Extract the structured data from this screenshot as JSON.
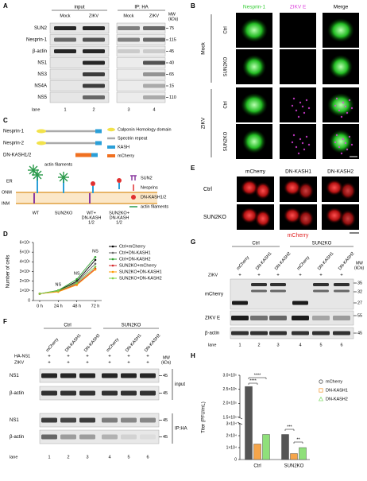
{
  "panel_a": {
    "letter": "A",
    "groups": [
      "input",
      "IP: HA"
    ],
    "conditions": [
      "Mock",
      "ZIKV",
      "Mock",
      "ZIKV"
    ],
    "mw_header": [
      "MW",
      "(kDa)"
    ],
    "rows": [
      {
        "label": "SUN2",
        "mw": 75
      },
      {
        "label": "Nesprin-1",
        "mw": 115
      },
      {
        "label": "β-actin",
        "mw": 45
      },
      {
        "label": "NS1",
        "mw": 40
      },
      {
        "label": "NS3",
        "mw": 65
      },
      {
        "label": "NS4A",
        "mw": 15
      },
      {
        "label": "NS5",
        "mw": 110
      }
    ],
    "lane_label": "lane",
    "lanes": [
      1,
      2,
      3,
      4
    ]
  },
  "panel_b": {
    "letter": "B",
    "columns": [
      "Nesprin-1",
      "ZIKV E",
      "Merge"
    ],
    "groups": [
      {
        "name": "Mock",
        "rows": [
          "Ctrl",
          "SUN2KO"
        ]
      },
      {
        "name": "ZIKV",
        "rows": [
          "Ctrl",
          "SUN2KO"
        ]
      }
    ]
  },
  "panel_c": {
    "letter": "C",
    "constructs": [
      "Nesprin-1",
      "Nesprin-2",
      "DN-KASH1/2"
    ],
    "domains": [
      "Calponin Homology domain",
      "Spectrin repeat",
      "KASH",
      "mCherry"
    ],
    "diagram_labels": {
      "actin": "actin filaments",
      "er": "ER",
      "onm": "ONM",
      "inm": "INM"
    },
    "legend": [
      "SUN2",
      "Nesprins",
      "DN-KASH1/2",
      "actin filaments"
    ],
    "conditions": [
      [
        "WT"
      ],
      [
        "SUN2KO"
      ],
      [
        "WT+",
        "DN-KASH",
        "1/2"
      ],
      [
        "SUN2KO+",
        "DN-KASH",
        "1/2"
      ]
    ]
  },
  "panel_d": {
    "letter": "D",
    "type": "line",
    "ylabel": "Number of cells",
    "categories": [
      "0 h",
      "24 h",
      "48 h",
      "72 h"
    ],
    "ylim": [
      0,
      600000
    ],
    "yticks": [
      0,
      {
        "value": 100000,
        "label": "1×10⁵"
      },
      {
        "value": 200000,
        "label": "2×10⁵"
      },
      {
        "value": 300000,
        "label": "3×10⁵"
      },
      {
        "value": 400000,
        "label": "4×10⁵"
      },
      {
        "value": 500000,
        "label": "5×10⁵"
      },
      {
        "value": 600000,
        "label": "6×10⁵"
      }
    ],
    "series": [
      {
        "name": "Ctrl+mCherry",
        "color": "#000000",
        "values": [
          70000,
          100000,
          200000,
          420000
        ]
      },
      {
        "name": "Ctrl+DN-KASH1",
        "color": "#666666",
        "values": [
          70000,
          95000,
          190000,
          380000
        ]
      },
      {
        "name": "Ctrl+DN-KASH2",
        "color": "#2ca02c",
        "values": [
          70000,
          105000,
          220000,
          450000
        ]
      },
      {
        "name": "SUN2KO+mCherry",
        "color": "#d62728",
        "values": [
          70000,
          95000,
          170000,
          330000
        ]
      },
      {
        "name": "SUN2KO+DN-KASH1",
        "color": "#ff9900",
        "values": [
          70000,
          90000,
          160000,
          320000
        ]
      },
      {
        "name": "SUN2KO+DN-KASH2",
        "color": "#7fd04a",
        "values": [
          70000,
          100000,
          180000,
          350000
        ]
      }
    ],
    "annotations": [
      "NS",
      "NS",
      "NS"
    ]
  },
  "panel_e": {
    "letter": "E",
    "columns": [
      "mCherry",
      "DN-KASH1",
      "DN-KASH2"
    ],
    "rows": [
      "Ctrl",
      "SUN2KO"
    ],
    "channel": "mCherry"
  },
  "panel_f": {
    "letter": "F",
    "groups": [
      "Ctrl",
      "SUN2KO"
    ],
    "constructs": [
      "mCherry",
      "DN-KASH1",
      "DN-KASH2",
      "mCherry",
      "DN-KASH1",
      "DN-KASH2"
    ],
    "treatments": [
      {
        "label": "HA-NS1",
        "marks": [
          "+",
          "+",
          "+",
          "+",
          "+",
          "+"
        ]
      },
      {
        "label": "ZIKV",
        "marks": [
          "+",
          "+",
          "+",
          "+",
          "+",
          "+"
        ]
      }
    ],
    "mw_header": [
      "MW",
      "(kDa)"
    ],
    "blots": [
      {
        "name": "input",
        "rows": [
          {
            "label": "NS1",
            "mw": 45
          },
          {
            "label": "β-actin",
            "mw": 45
          }
        ]
      },
      {
        "name": "IP:HA",
        "rows": [
          {
            "label": "NS1",
            "mw": 45
          },
          {
            "label": "β-actin",
            "mw": 45
          }
        ]
      }
    ],
    "lane_label": "lane",
    "lanes": [
      1,
      2,
      3,
      4,
      5,
      6
    ]
  },
  "panel_g": {
    "letter": "G",
    "groups": [
      "Ctrl",
      "SUN2KO"
    ],
    "constructs": [
      "mCherry",
      "DN-KASH1",
      "DN-KASH2",
      "mCherry",
      "DN-KASH1",
      "DN-KASH2"
    ],
    "treatment": {
      "label": "ZIKV",
      "marks": [
        "+",
        "+",
        "+",
        "+",
        "+",
        "+"
      ]
    },
    "mw_header": [
      "MW",
      "(kDa)"
    ],
    "rows": [
      {
        "label": "mCherry",
        "mw": [
          35,
          32,
          27
        ]
      },
      {
        "label": "ZIKV E",
        "mw": [
          55
        ]
      },
      {
        "label": "β-actin",
        "mw": [
          45
        ]
      }
    ],
    "lane_label": "lane",
    "lanes": [
      1,
      2,
      3,
      4,
      5,
      6
    ]
  },
  "panel_h": {
    "letter": "H",
    "type": "bar",
    "ylabel": "Titer (PFU/mL)",
    "categories": [
      "Ctrl",
      "SUN2KO"
    ],
    "series": [
      {
        "name": "mCherry",
        "color": "#555555",
        "values": [
          260000,
          21000
        ]
      },
      {
        "name": "DN-KASH1",
        "color": "#f5a54a",
        "values": [
          13000,
          5000
        ]
      },
      {
        "name": "DN-KASH2",
        "color": "#8fe07a",
        "values": [
          21000,
          10000
        ]
      }
    ],
    "ylim": [
      0,
      300000
    ],
    "ybreak": [
      30000,
      150000
    ],
    "yticks": [
      0,
      {
        "value": 10000,
        "label": "1×10⁴"
      },
      {
        "value": 20000,
        "label": "2×10⁴"
      },
      {
        "value": 30000,
        "label": "3×10⁴"
      },
      {
        "value": 150000,
        "label": "1.5×10⁵"
      },
      {
        "value": 200000,
        "label": "2.0×10⁵"
      },
      {
        "value": 250000,
        "label": "2.5×10⁵"
      },
      {
        "value": 300000,
        "label": "3.0×10⁵"
      }
    ],
    "annotations": [
      "****",
      "****",
      "***",
      "**"
    ]
  }
}
